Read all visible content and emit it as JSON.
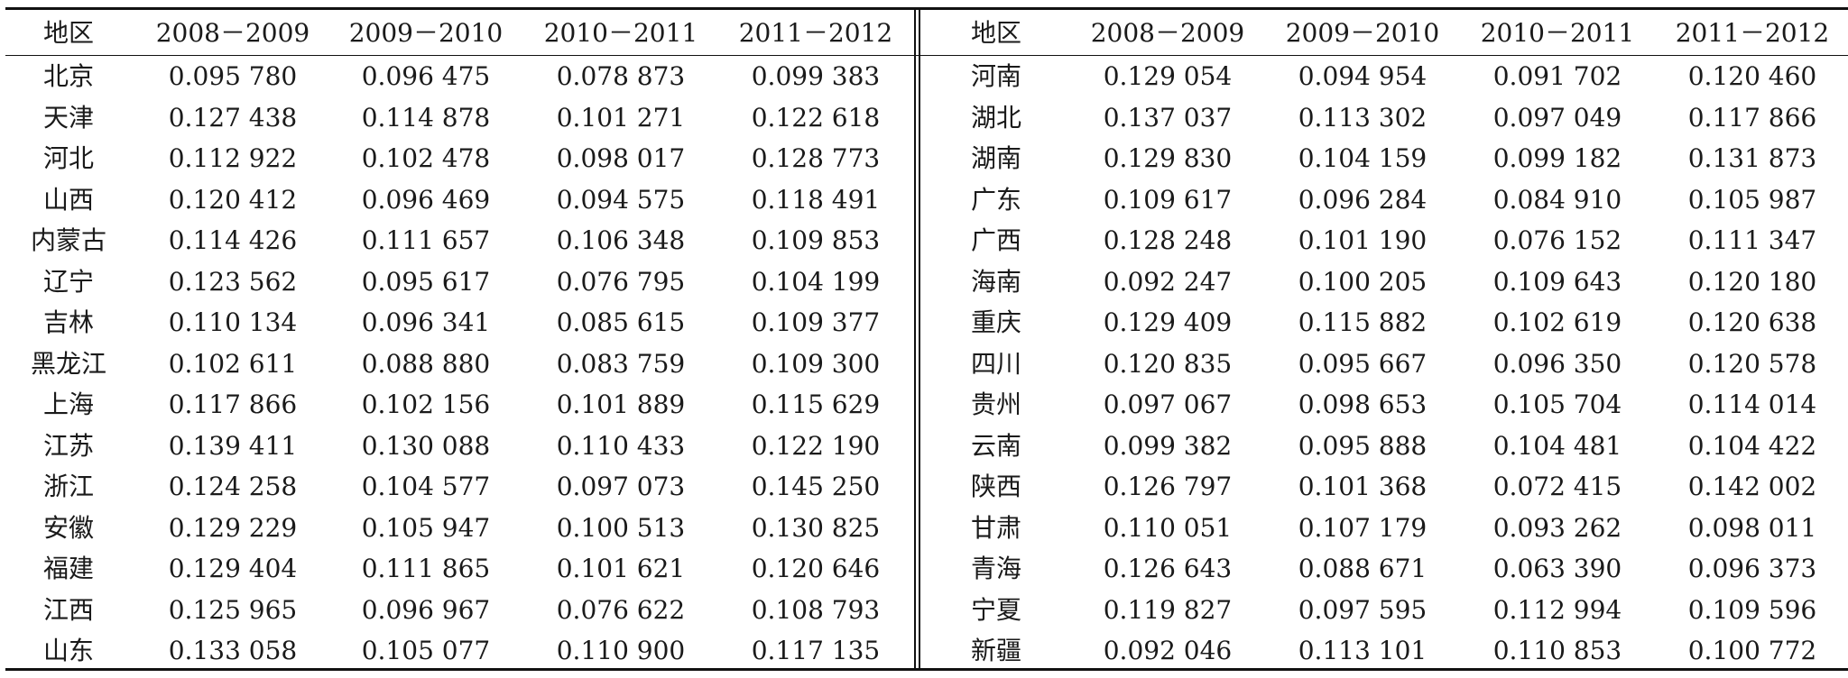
{
  "headers": [
    "地区",
    "2008－2009",
    "2009－2010",
    "2010－2011",
    "2011－2012"
  ],
  "left_rows": [
    {
      "region": "北京",
      "v": [
        "0.095 780",
        "0.096 475",
        "0.078 873",
        "0.099 383"
      ]
    },
    {
      "region": "天津",
      "v": [
        "0.127 438",
        "0.114 878",
        "0.101 271",
        "0.122 618"
      ]
    },
    {
      "region": "河北",
      "v": [
        "0.112 922",
        "0.102 478",
        "0.098 017",
        "0.128 773"
      ]
    },
    {
      "region": "山西",
      "v": [
        "0.120 412",
        "0.096 469",
        "0.094 575",
        "0.118 491"
      ]
    },
    {
      "region": "内蒙古",
      "v": [
        "0.114 426",
        "0.111 657",
        "0.106 348",
        "0.109 853"
      ]
    },
    {
      "region": "辽宁",
      "v": [
        "0.123 562",
        "0.095 617",
        "0.076 795",
        "0.104 199"
      ]
    },
    {
      "region": "吉林",
      "v": [
        "0.110 134",
        "0.096 341",
        "0.085 615",
        "0.109 377"
      ]
    },
    {
      "region": "黑龙江",
      "v": [
        "0.102 611",
        "0.088 880",
        "0.083 759",
        "0.109 300"
      ]
    },
    {
      "region": "上海",
      "v": [
        "0.117 866",
        "0.102 156",
        "0.101 889",
        "0.115 629"
      ]
    },
    {
      "region": "江苏",
      "v": [
        "0.139 411",
        "0.130 088",
        "0.110 433",
        "0.122 190"
      ]
    },
    {
      "region": "浙江",
      "v": [
        "0.124 258",
        "0.104 577",
        "0.097 073",
        "0.145 250"
      ]
    },
    {
      "region": "安徽",
      "v": [
        "0.129 229",
        "0.105 947",
        "0.100 513",
        "0.130 825"
      ]
    },
    {
      "region": "福建",
      "v": [
        "0.129 404",
        "0.111 865",
        "0.101 621",
        "0.120 646"
      ]
    },
    {
      "region": "江西",
      "v": [
        "0.125 965",
        "0.096 967",
        "0.076 622",
        "0.108 793"
      ]
    },
    {
      "region": "山东",
      "v": [
        "0.133 058",
        "0.105 077",
        "0.110 900",
        "0.117 135"
      ]
    }
  ],
  "right_rows": [
    {
      "region": "河南",
      "v": [
        "0.129 054",
        "0.094 954",
        "0.091 702",
        "0.120 460"
      ]
    },
    {
      "region": "湖北",
      "v": [
        "0.137 037",
        "0.113 302",
        "0.097 049",
        "0.117 866"
      ]
    },
    {
      "region": "湖南",
      "v": [
        "0.129 830",
        "0.104 159",
        "0.099 182",
        "0.131 873"
      ]
    },
    {
      "region": "广东",
      "v": [
        "0.109 617",
        "0.096 284",
        "0.084 910",
        "0.105 987"
      ]
    },
    {
      "region": "广西",
      "v": [
        "0.128 248",
        "0.101 190",
        "0.076 152",
        "0.111 347"
      ]
    },
    {
      "region": "海南",
      "v": [
        "0.092 247",
        "0.100 205",
        "0.109 643",
        "0.120 180"
      ]
    },
    {
      "region": "重庆",
      "v": [
        "0.129 409",
        "0.115 882",
        "0.102 619",
        "0.120 638"
      ]
    },
    {
      "region": "四川",
      "v": [
        "0.120 835",
        "0.095 667",
        "0.096 350",
        "0.120 578"
      ]
    },
    {
      "region": "贵州",
      "v": [
        "0.097 067",
        "0.098 653",
        "0.105 704",
        "0.114 014"
      ]
    },
    {
      "region": "云南",
      "v": [
        "0.099 382",
        "0.095 888",
        "0.104 481",
        "0.104 422"
      ]
    },
    {
      "region": "陕西",
      "v": [
        "0.126 797",
        "0.101 368",
        "0.072 415",
        "0.142 002"
      ]
    },
    {
      "region": "甘肃",
      "v": [
        "0.110 051",
        "0.107 179",
        "0.093 262",
        "0.098 011"
      ]
    },
    {
      "region": "青海",
      "v": [
        "0.126 643",
        "0.088 671",
        "0.063 390",
        "0.096 373"
      ]
    },
    {
      "region": "宁夏",
      "v": [
        "0.119 827",
        "0.097 595",
        "0.112 994",
        "0.109 596"
      ]
    },
    {
      "region": "新疆",
      "v": [
        "0.092 046",
        "0.113 101",
        "0.110 853",
        "0.100 772"
      ]
    }
  ]
}
